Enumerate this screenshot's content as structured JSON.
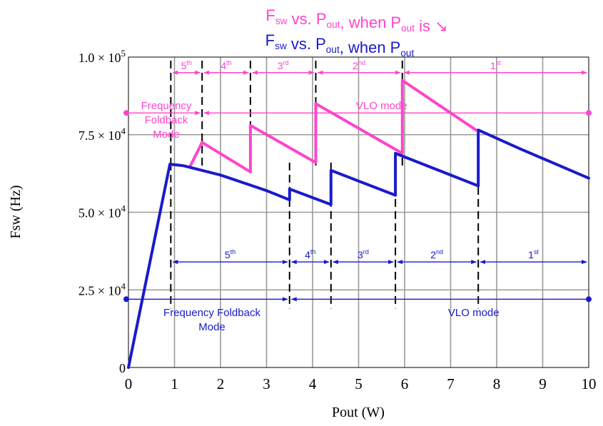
{
  "chart_data": {
    "type": "line",
    "title_lines": [
      {
        "parts": [
          {
            "t": "F"
          },
          {
            "t": "sw",
            "sub": true
          },
          {
            "t": " vs. P"
          },
          {
            "t": "out",
            "sub": true
          },
          {
            "t": ", when P"
          },
          {
            "t": "out",
            "sub": true
          },
          {
            "t": " is ↘"
          }
        ]
      },
      {
        "parts": [
          {
            "t": "F"
          },
          {
            "t": "sw",
            "sub": true
          },
          {
            "t": " vs. P"
          },
          {
            "t": "out",
            "sub": true
          },
          {
            "t": ", when P"
          },
          {
            "t": "out",
            "sub": true
          }
        ]
      }
    ],
    "xlabel": "Pout (W)",
    "ylabel": "Fsw (Hz)",
    "xlim": [
      0,
      10
    ],
    "ylim": [
      0,
      100000
    ],
    "x_ticks": [
      0,
      1,
      2,
      3,
      4,
      5,
      6,
      7,
      8,
      9,
      10
    ],
    "y_ticks": [
      {
        "value": 0,
        "mant": "0",
        "exp": ""
      },
      {
        "value": 25000,
        "mant": "2.5 × 10",
        "exp": "4"
      },
      {
        "value": 50000,
        "mant": "5.0 × 10",
        "exp": "4"
      },
      {
        "value": 75000,
        "mant": "7.5 × 10",
        "exp": "4"
      },
      {
        "value": 100000,
        "mant": "1.0 × 10",
        "exp": "5"
      }
    ],
    "grid": true,
    "colors": {
      "decreasing": "#ff44cc",
      "increasing": "#1a1acc",
      "dash": "#000000"
    },
    "series": [
      {
        "key": "decreasing",
        "x": [
          1.33,
          1.6,
          2.65,
          2.65,
          4.07,
          4.07,
          5.95,
          5.95,
          7.55
        ],
        "y": [
          64500,
          72500,
          63000,
          78000,
          66000,
          85000,
          69000,
          92500,
          76500
        ]
      },
      {
        "key": "increasing",
        "x": [
          0,
          0.9,
          1.2,
          2.0,
          3.0,
          3.5,
          3.5,
          4.4,
          4.4,
          5.8,
          5.8,
          7.6,
          7.6,
          8.5,
          10
        ],
        "y": [
          0,
          65500,
          65000,
          62000,
          57000,
          54000,
          57500,
          52500,
          63500,
          55500,
          69000,
          58500,
          76500,
          70500,
          61000
        ]
      }
    ],
    "decreasing_dividers": [
      0.92,
      1.6,
      2.65,
      4.07,
      5.95
    ],
    "increasing_dividers": [
      0.92,
      3.5,
      4.4,
      5.8,
      7.6
    ],
    "decreasing_segments": [
      {
        "from": 0.92,
        "to": 1.6,
        "base": "5",
        "sup": "th"
      },
      {
        "from": 1.6,
        "to": 2.65,
        "base": "4",
        "sup": "th"
      },
      {
        "from": 2.65,
        "to": 4.07,
        "base": "3",
        "sup": "rd"
      },
      {
        "from": 4.07,
        "to": 5.95,
        "base": "2",
        "sup": "nd"
      },
      {
        "from": 5.95,
        "to": 10,
        "base": "1",
        "sup": "st"
      }
    ],
    "increasing_segments": [
      {
        "from": 0.92,
        "to": 3.5,
        "base": "5",
        "sup": "th"
      },
      {
        "from": 3.5,
        "to": 4.4,
        "base": "4",
        "sup": "th"
      },
      {
        "from": 4.4,
        "to": 5.8,
        "base": "3",
        "sup": "rd"
      },
      {
        "from": 5.8,
        "to": 7.6,
        "base": "2",
        "sup": "nd"
      },
      {
        "from": 7.6,
        "to": 10,
        "base": "1",
        "sup": "st"
      }
    ],
    "decreasing_modes": {
      "boundary": 1.6,
      "level": 82000,
      "left_label": [
        "Frequency",
        "Foldback",
        "Mode"
      ],
      "right_label": "VLO mode"
    },
    "increasing_modes": {
      "boundary": 3.5,
      "level": 22000,
      "left_label": [
        "Frequency Foldback",
        "Mode"
      ],
      "right_label": "VLO mode"
    }
  }
}
